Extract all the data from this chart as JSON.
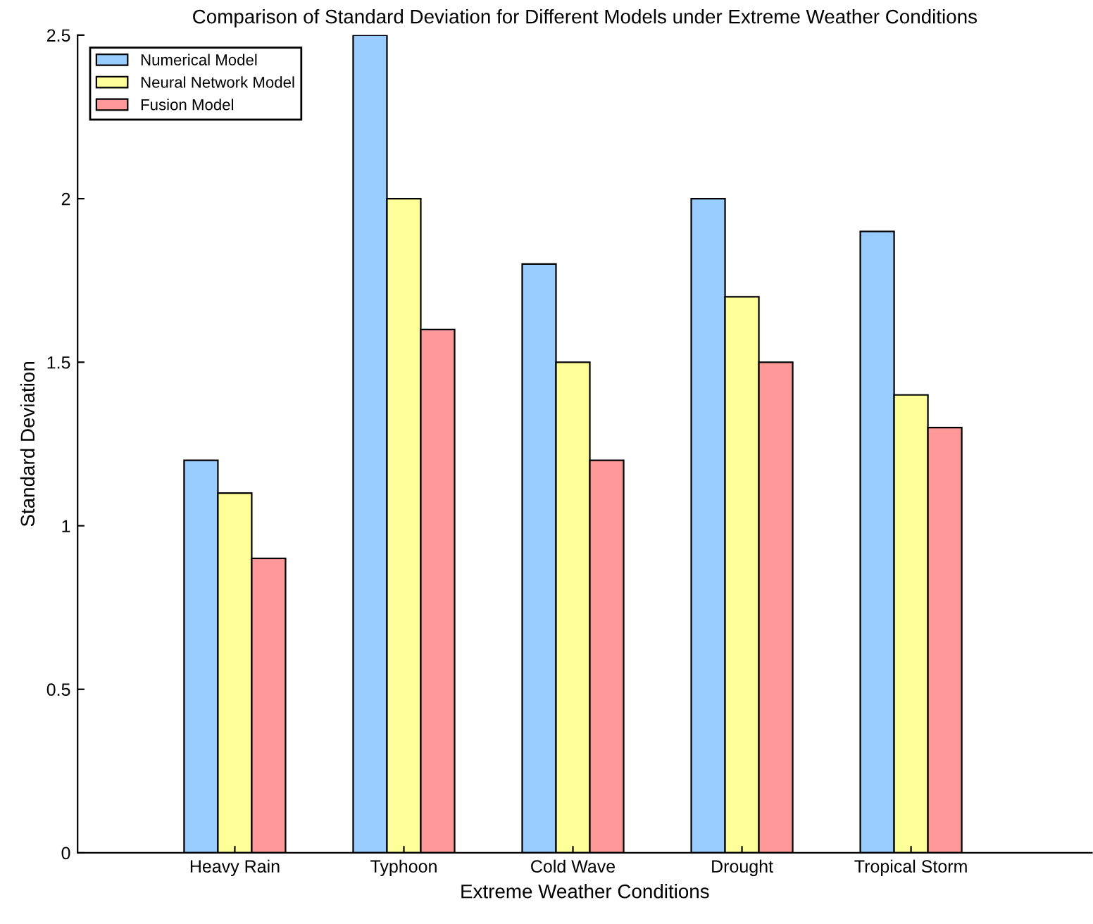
{
  "chart_data": {
    "type": "bar",
    "title": "Comparison of Standard Deviation for Different Models under Extreme Weather Conditions",
    "xlabel": "Extreme Weather Conditions",
    "ylabel": "Standard Deviation",
    "categories": [
      "Heavy Rain",
      "Typhoon",
      "Cold Wave",
      "Drought",
      "Tropical Storm"
    ],
    "series": [
      {
        "name": "Numerical Model",
        "color": "#99ccff",
        "values": [
          1.2,
          2.5,
          1.8,
          2.0,
          1.9
        ]
      },
      {
        "name": "Neural Network Model",
        "color": "#ffff99",
        "values": [
          1.1,
          2.0,
          1.5,
          1.7,
          1.4
        ]
      },
      {
        "name": "Fusion Model",
        "color": "#ff9999",
        "values": [
          0.9,
          1.6,
          1.2,
          1.5,
          1.3
        ]
      }
    ],
    "ylim": [
      0,
      2.5
    ],
    "yticks": [
      0,
      0.5,
      1,
      1.5,
      2,
      2.5
    ],
    "grid": false,
    "legend": "top left"
  }
}
